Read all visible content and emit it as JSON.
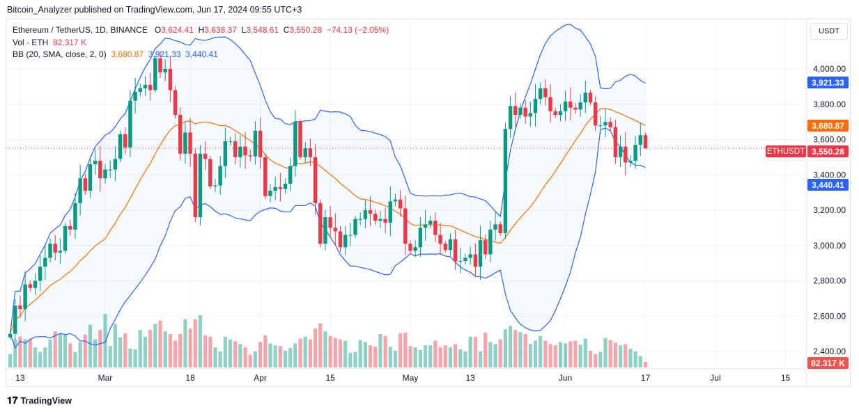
{
  "publish_line": "Bitcoin_Analyzer published on TradingView.com, Jun 17, 2024 09:55 UTC+3",
  "legend": {
    "symbol": "Ethereum / TetherUS, 1D, BINANCE",
    "o_label": "O",
    "o": "3,624.41",
    "h_label": "H",
    "h": "3,638.37",
    "l_label": "L",
    "l": "3,548.61",
    "c_label": "C",
    "c": "3,550.28",
    "change": "−74.13 (−2.05%)",
    "vol_label": "Vol · ETH",
    "vol": "82.317 K",
    "bb_label": "BB (20, SMA, close, 2, 0)",
    "bb_basis": "3,680.87",
    "bb_upper": "3,921.33",
    "bb_lower": "3,440.41"
  },
  "currency_button": "USDT",
  "tags": {
    "upper": "3,921.33",
    "basis": "3,680.87",
    "symbol": "ETHUSDT",
    "last": "3,550.28",
    "lower": "3,440.41",
    "volume": "82.317 K"
  },
  "footer_logo": "TradingView",
  "colors": {
    "up": "#089981",
    "down": "#f23645",
    "bb": "#2962ff",
    "basis": "#ff6d00"
  },
  "chart_data": {
    "type": "candlestick",
    "title": "Ethereum / TetherUS, 1D, BINANCE",
    "start_date": "2024-02-11",
    "ylim": [
      2350,
      4200
    ],
    "y_ticks": [
      "2,400.00",
      "2,600.00",
      "2,800.00",
      "3,000.00",
      "3,200.00",
      "3,400.00",
      "3,600.00",
      "3,800.00",
      "4,000.00"
    ],
    "y_tick_values": [
      2400,
      2600,
      2800,
      3000,
      3200,
      3400,
      3600,
      3800,
      4000
    ],
    "x_ticks": [
      {
        "label": "13",
        "index": 2
      },
      {
        "label": "Mar",
        "index": 19
      },
      {
        "label": "18",
        "index": 36
      },
      {
        "label": "Apr",
        "index": 50
      },
      {
        "label": "15",
        "index": 64
      },
      {
        "label": "May",
        "index": 80
      },
      {
        "label": "13",
        "index": 92
      },
      {
        "label": "Jun",
        "index": 111
      },
      {
        "label": "17",
        "index": 127
      },
      {
        "label": "Jul",
        "index": 141
      },
      {
        "label": "15",
        "index": 155
      }
    ],
    "close": [
      2500,
      2660,
      2640,
      2780,
      2760,
      2800,
      2880,
      2930,
      3010,
      2960,
      2970,
      3110,
      3090,
      3240,
      3380,
      3310,
      3460,
      3480,
      3380,
      3430,
      3430,
      3490,
      3630,
      3555,
      3820,
      3870,
      3890,
      3910,
      3880,
      4060,
      3980,
      4000,
      3880,
      3740,
      3520,
      3640,
      3520,
      3160,
      3520,
      3490,
      3335,
      3340,
      3450,
      3590,
      3590,
      3500,
      3560,
      3510,
      3505,
      3650,
      3500,
      3280,
      3310,
      3330,
      3320,
      3350,
      3450,
      3700,
      3500,
      3550,
      3500,
      3240,
      3010,
      3160,
      3100,
      3080,
      2990,
      3060,
      3060,
      3150,
      3150,
      3200,
      3180,
      3140,
      3150,
      3130,
      3250,
      3260,
      3210,
      3010,
      2970,
      2990,
      3100,
      3120,
      3140,
      3060,
      3010,
      2975,
      3035,
      2910,
      2912,
      2930,
      2950,
      2880,
      3030,
      2950,
      3090,
      3120,
      3070,
      3660,
      3790,
      3740,
      3780,
      3730,
      3750,
      3830,
      3890,
      3840,
      3760,
      3740,
      3760,
      3815,
      3780,
      3770,
      3810,
      3865,
      3810,
      3680,
      3680,
      3700,
      3670,
      3500,
      3560,
      3470,
      3480,
      3570,
      3624.41,
      3550.28
    ],
    "open_first": 2480,
    "last_ohlc": {
      "open": 3624.41,
      "high": 3638.37,
      "low": 3548.61,
      "close": 3550.28
    },
    "volume_k": [
      200,
      420,
      460,
      420,
      430,
      300,
      230,
      300,
      420,
      540,
      510,
      490,
      360,
      230,
      380,
      490,
      640,
      420,
      560,
      800,
      320,
      650,
      450,
      510,
      280,
      270,
      560,
      460,
      560,
      650,
      700,
      540,
      500,
      400,
      500,
      720,
      580,
      720,
      780,
      480,
      460,
      300,
      240,
      460,
      420,
      390,
      350,
      300,
      190,
      240,
      380,
      480,
      360,
      330,
      320,
      250,
      290,
      360,
      430,
      460,
      420,
      580,
      660,
      540,
      470,
      440,
      420,
      400,
      220,
      230,
      410,
      380,
      330,
      310,
      500,
      470,
      310,
      250,
      510,
      520,
      320,
      300,
      260,
      330,
      330,
      400,
      300,
      330,
      300,
      350,
      270,
      240,
      460,
      460,
      240,
      520,
      380,
      350,
      420,
      570,
      620,
      560,
      530,
      500,
      350,
      400,
      470,
      400,
      350,
      330,
      380,
      360,
      390,
      400,
      340,
      430,
      250,
      200,
      230,
      440,
      410,
      370,
      330,
      350,
      280,
      240,
      170,
      82.317
    ]
  }
}
